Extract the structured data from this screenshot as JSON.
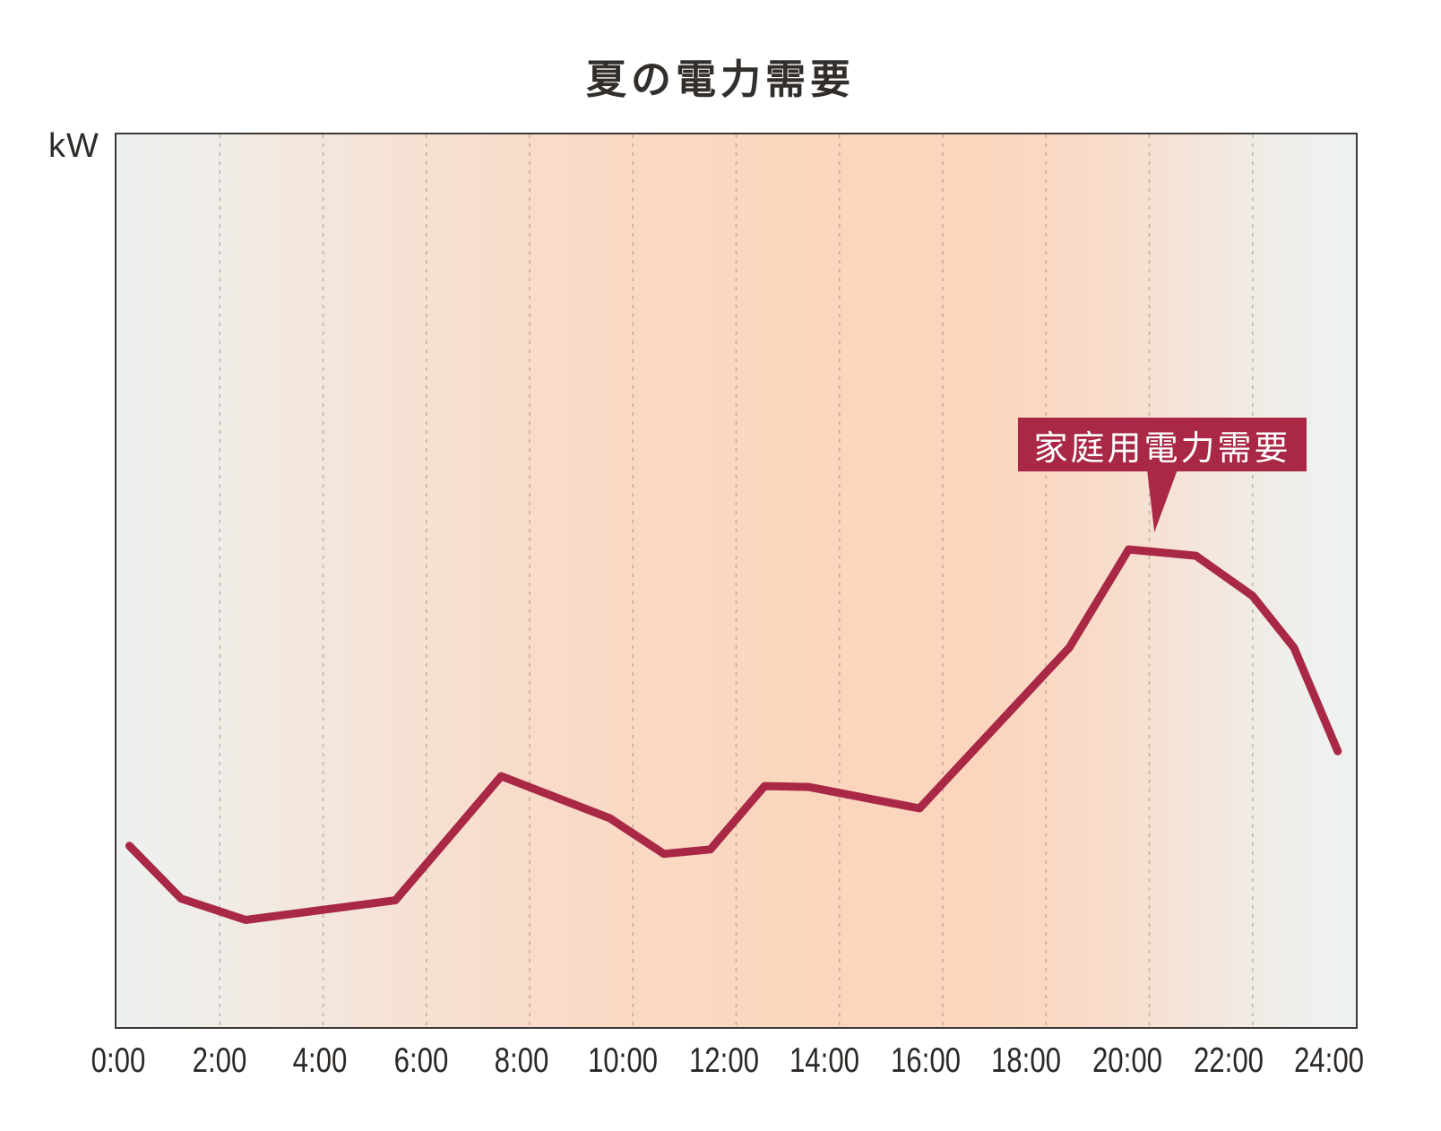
{
  "header": {
    "title": "夏の電力需要"
  },
  "axis": {
    "unit_label": "kW"
  },
  "callout": {
    "label": "家庭用電力需要"
  },
  "colors": {
    "line_red": "#a82845",
    "callout_bg": "#a82845",
    "callout_text": "#ffffff",
    "title_text": "#322e2b",
    "axis_text": "#2b2825",
    "plot_border": "#3c3937",
    "gridline": "rgba(110,105,100,0.38)",
    "gradient_left": "#edf1ef",
    "gradient_peak": "#fbd5bd",
    "gradient_right": "#edf1ef"
  },
  "chart_data": {
    "type": "line",
    "title": "夏の電力需要",
    "xlabel": "",
    "ylabel": "kW",
    "x_axis": {
      "range_hours": [
        0,
        24
      ],
      "tick_labels": [
        "0:00",
        "2:00",
        "4:00",
        "6:00",
        "8:00",
        "10:00",
        "12:00",
        "14:00",
        "16:00",
        "18:00",
        "20:00",
        "22:00",
        "24:00"
      ],
      "gridlines": "vertical-dashed-every-2h"
    },
    "y_axis": {
      "unit": "kW",
      "numeric_ticks_shown": false,
      "scale": "relative-percent-of-plot-height"
    },
    "legend": "none",
    "series": [
      {
        "name": "家庭用電力需要",
        "color": "#a82845",
        "x_hours": [
          0.25,
          1.25,
          2.5,
          5.4,
          7.45,
          9.55,
          10.6,
          11.5,
          12.55,
          13.4,
          15.55,
          18.45,
          19.6,
          20.9,
          22.0,
          22.8,
          23.65
        ],
        "values_relative": [
          20.3,
          14.4,
          12.0,
          14.2,
          28.1,
          23.4,
          19.4,
          19.9,
          27.0,
          26.9,
          24.5,
          42.5,
          53.5,
          52.8,
          48.3,
          42.5,
          30.9
        ]
      }
    ],
    "annotations": [
      {
        "text": "家庭用電力需要",
        "style": "filled-callout-with-tail",
        "points_to_hour": 19.6
      }
    ]
  }
}
